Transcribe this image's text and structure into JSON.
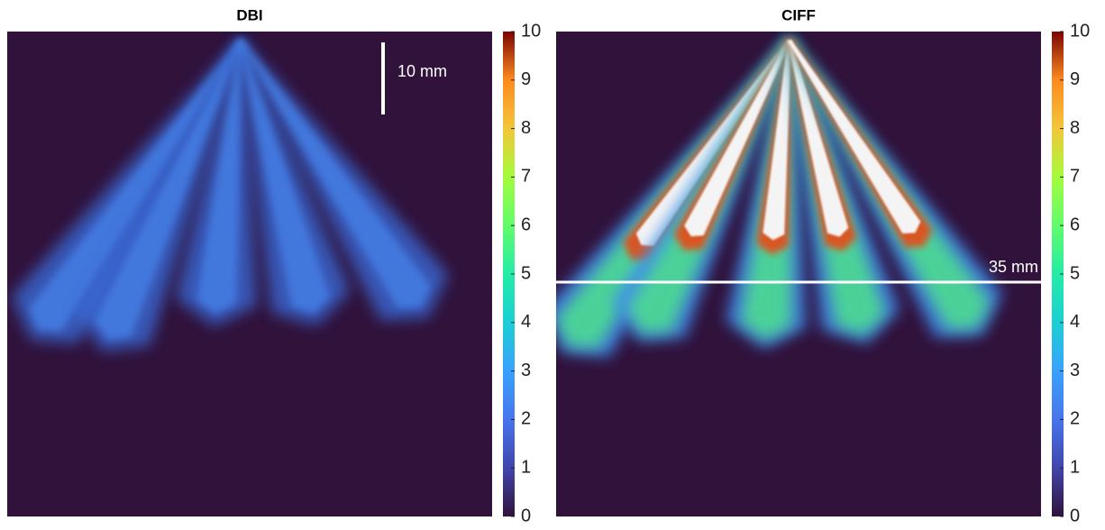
{
  "chart_data": [
    {
      "type": "image",
      "title": "DBI",
      "clim": [
        0,
        10
      ],
      "cticks": [
        0,
        1,
        2,
        3,
        4,
        5,
        6,
        7,
        8,
        9,
        10
      ],
      "annotation": "10 mm"
    },
    {
      "type": "image",
      "title": "CIFF",
      "clim": [
        0,
        10
      ],
      "cticks": [
        0,
        1,
        2,
        3,
        4,
        5,
        6,
        7,
        8,
        9,
        10
      ],
      "annotation": "35 mm"
    }
  ]
}
